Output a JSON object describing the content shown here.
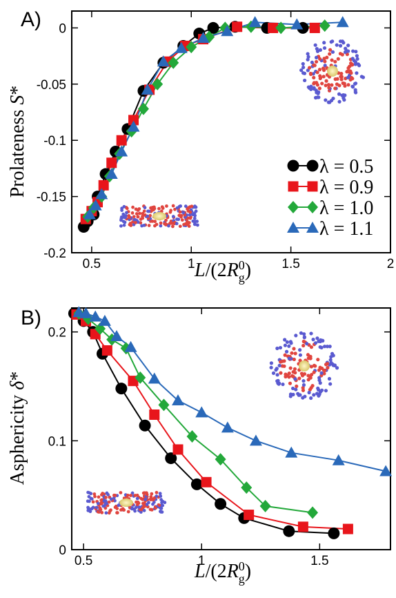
{
  "chart_data": [
    {
      "type": "line",
      "panel_label": "A)",
      "xlabel": "L/(2R^0_g)",
      "ylabel": "Prolateness S*",
      "xlim": [
        0.4,
        2.0
      ],
      "ylim": [
        -0.2,
        0.015
      ],
      "xticks": [
        0.5,
        1,
        1.5,
        2
      ],
      "xticklabels": [
        "0.5",
        "1",
        "1.5",
        "2"
      ],
      "yticks": [
        0,
        -0.05,
        -0.1,
        -0.15,
        -0.2
      ],
      "yticklabels": [
        "0",
        "-0.05",
        "-0.1",
        "-0.15",
        "-0.2"
      ],
      "legend_position": "right",
      "series": [
        {
          "name": "λ = 0.5",
          "marker": "circle",
          "color": "#000000",
          "x": [
            0.46,
            0.48,
            0.51,
            0.53,
            0.57,
            0.62,
            0.68,
            0.76,
            0.86,
            0.96,
            1.04,
            1.11,
            1.22,
            1.38,
            1.56
          ],
          "y": [
            -0.177,
            -0.172,
            -0.166,
            -0.15,
            -0.13,
            -0.11,
            -0.09,
            -0.056,
            -0.031,
            -0.016,
            -0.005,
            0.0,
            0.001,
            0.0,
            0.0
          ]
        },
        {
          "name": "λ = 0.9",
          "marker": "square",
          "color": "#e8151b",
          "x": [
            0.47,
            0.5,
            0.53,
            0.56,
            0.6,
            0.65,
            0.71,
            0.79,
            0.88,
            0.97,
            1.06,
            1.23,
            1.41,
            1.62
          ],
          "y": [
            -0.17,
            -0.163,
            -0.155,
            -0.14,
            -0.12,
            -0.1,
            -0.082,
            -0.055,
            -0.03,
            -0.016,
            -0.01,
            0.001,
            0.0,
            0.0
          ]
        },
        {
          "name": "λ = 1.0",
          "marker": "diamond",
          "color": "#23a83a",
          "x": [
            0.48,
            0.51,
            0.55,
            0.59,
            0.64,
            0.7,
            0.76,
            0.83,
            0.91,
            1.0,
            1.09,
            1.17,
            1.3,
            1.45,
            1.67
          ],
          "y": [
            -0.168,
            -0.16,
            -0.15,
            -0.132,
            -0.112,
            -0.092,
            -0.072,
            -0.05,
            -0.031,
            -0.017,
            -0.008,
            0.0,
            0.001,
            0.0,
            0.002
          ]
        },
        {
          "name": "λ = 1.1",
          "marker": "triangle",
          "color": "#2a69b9",
          "x": [
            0.49,
            0.52,
            0.55,
            0.6,
            0.65,
            0.71,
            0.78,
            0.86,
            0.95,
            1.06,
            1.18,
            1.32,
            1.53,
            1.76
          ],
          "y": [
            -0.166,
            -0.158,
            -0.148,
            -0.13,
            -0.11,
            -0.088,
            -0.055,
            -0.03,
            -0.018,
            -0.009,
            -0.003,
            0.005,
            0.003,
            0.005
          ]
        }
      ]
    },
    {
      "type": "line",
      "panel_label": "B)",
      "xlabel": "L/(2R^0_g)",
      "ylabel": "Asphericity δ*",
      "xlim": [
        0.45,
        1.8
      ],
      "ylim": [
        0.0,
        0.222
      ],
      "xticks": [
        0.5,
        1.0,
        1.5
      ],
      "xticklabels": [
        "0.5",
        "1",
        "1.5"
      ],
      "yticks": [
        0.0,
        0.1,
        0.2
      ],
      "yticklabels": [
        "0",
        "0.1",
        "0.2"
      ],
      "series": [
        {
          "name": "λ = 0.5",
          "marker": "circle",
          "color": "#000000",
          "x": [
            0.46,
            0.5,
            0.54,
            0.58,
            0.66,
            0.76,
            0.87,
            0.98,
            1.08,
            1.18,
            1.37,
            1.56
          ],
          "y": [
            0.217,
            0.21,
            0.2,
            0.18,
            0.148,
            0.114,
            0.084,
            0.06,
            0.042,
            0.029,
            0.017,
            0.015
          ]
        },
        {
          "name": "λ = 0.9",
          "marker": "square",
          "color": "#e8151b",
          "x": [
            0.47,
            0.51,
            0.55,
            0.6,
            0.71,
            0.8,
            0.9,
            1.02,
            1.2,
            1.43,
            1.62
          ],
          "y": [
            0.216,
            0.21,
            0.198,
            0.183,
            0.155,
            0.124,
            0.092,
            0.062,
            0.032,
            0.021,
            0.019
          ]
        },
        {
          "name": "λ = 1.0",
          "marker": "diamond",
          "color": "#23a83a",
          "x": [
            0.48,
            0.52,
            0.57,
            0.62,
            0.68,
            0.74,
            0.84,
            0.96,
            1.08,
            1.19,
            1.27,
            1.47
          ],
          "y": [
            0.217,
            0.212,
            0.203,
            0.193,
            0.185,
            0.158,
            0.133,
            0.104,
            0.083,
            0.057,
            0.04,
            0.034
          ]
        },
        {
          "name": "λ = 1.1",
          "marker": "triangle",
          "color": "#2a69b9",
          "x": [
            0.48,
            0.51,
            0.55,
            0.59,
            0.64,
            0.7,
            0.8,
            0.9,
            1.0,
            1.11,
            1.23,
            1.38,
            1.58,
            1.78
          ],
          "y": [
            0.218,
            0.217,
            0.214,
            0.21,
            0.196,
            0.186,
            0.157,
            0.137,
            0.126,
            0.112,
            0.1,
            0.089,
            0.082,
            0.072
          ]
        }
      ]
    }
  ]
}
